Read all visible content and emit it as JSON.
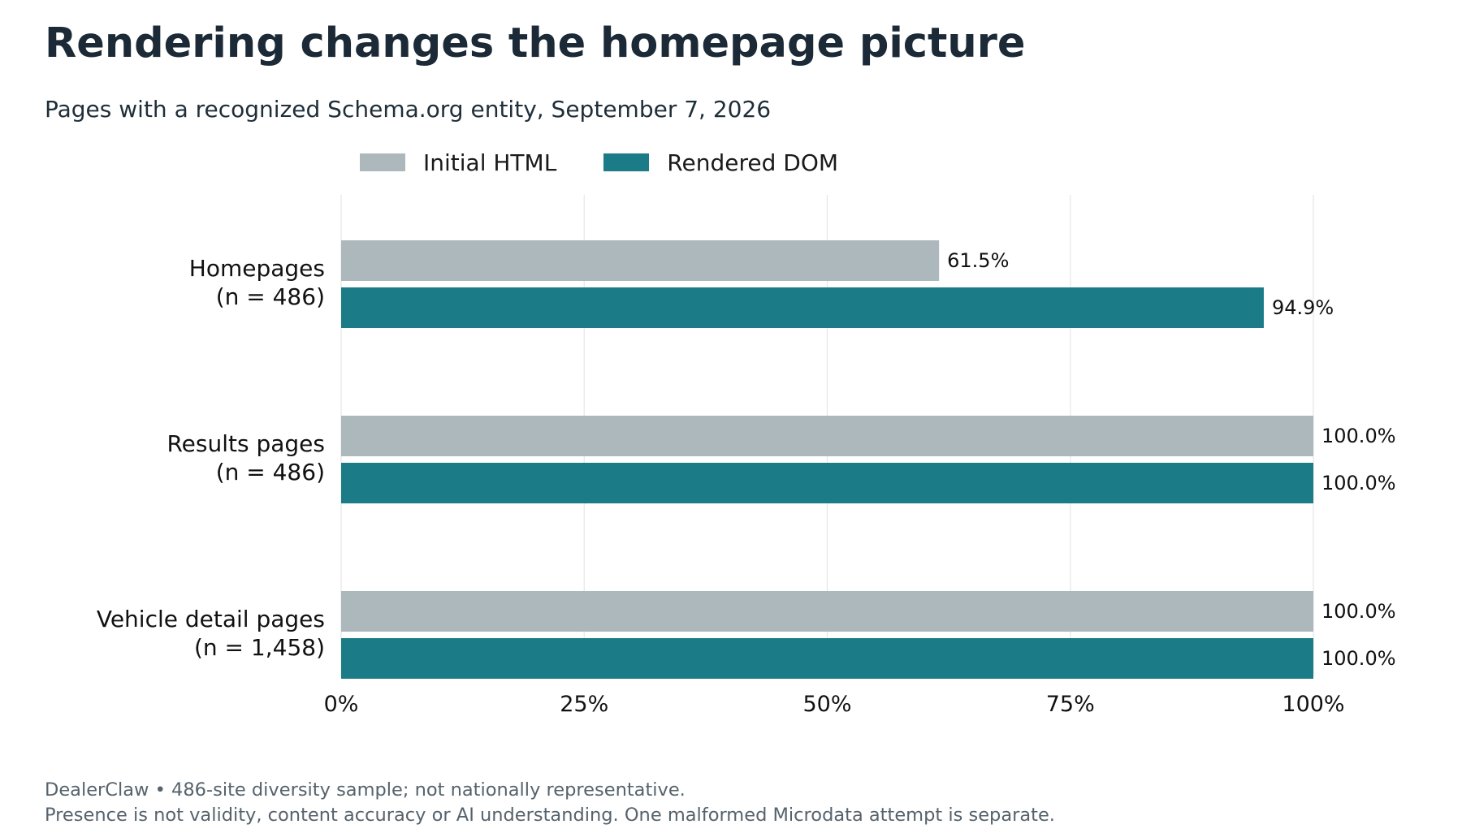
{
  "title": "Rendering changes the homepage picture",
  "subtitle": "Pages with a recognized Schema.org entity, September 7, 2026",
  "footer": {
    "line1": "DealerClaw • 486-site diversity sample; not nationally representative.",
    "line2": "Presence is not validity, content accuracy or AI understanding. One malformed Microdata attempt is separate."
  },
  "chart_data": {
    "type": "bar",
    "orientation": "horizontal",
    "title": "Rendering changes the homepage picture",
    "subtitle": "Pages with a recognized Schema.org entity, September 7, 2026",
    "categories": [
      {
        "name": "Homepages",
        "n_label": "(n = 486)"
      },
      {
        "name": "Results pages",
        "n_label": "(n = 486)"
      },
      {
        "name": "Vehicle detail pages",
        "n_label": "(n = 1,458)"
      }
    ],
    "series": [
      {
        "name": "Initial HTML",
        "color": "#adb8bd",
        "values": [
          61.5,
          100.0,
          100.0
        ],
        "value_labels": [
          "61.5%",
          "100.0%",
          "100.0%"
        ]
      },
      {
        "name": "Rendered DOM",
        "color": "#1b7b86",
        "values": [
          94.9,
          100.0,
          100.0
        ],
        "value_labels": [
          "94.9%",
          "100.0%",
          "100.0%"
        ]
      }
    ],
    "xlim": [
      0,
      100
    ],
    "xticks": [
      0,
      25,
      50,
      75,
      100
    ],
    "xtick_labels": [
      "0%",
      "25%",
      "50%",
      "75%",
      "100%"
    ],
    "grid": "vertical",
    "legend": "top-center"
  }
}
